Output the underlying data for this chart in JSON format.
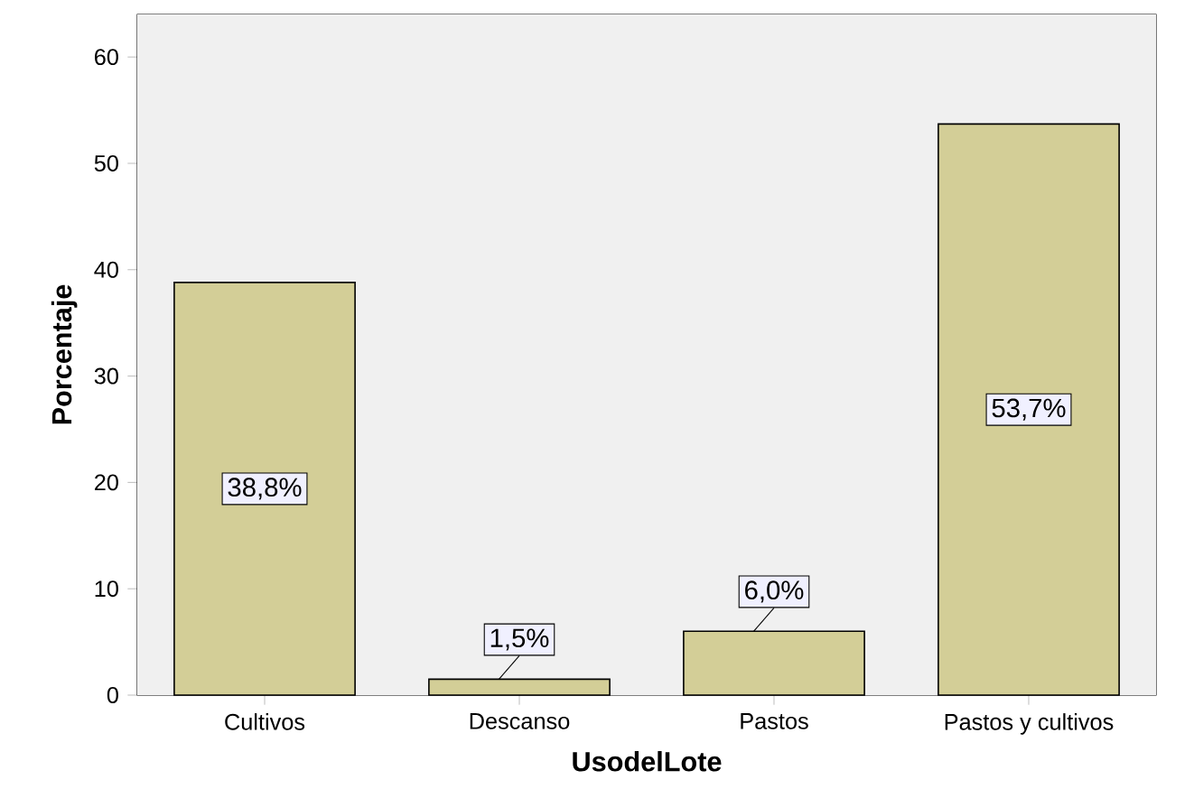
{
  "chart_data": {
    "type": "bar",
    "xlabel": "UsodelLote",
    "ylabel": "Porcentaje",
    "categories": [
      "Cultivos",
      "Descanso",
      "Pastos",
      "Pastos y cultivos"
    ],
    "values": [
      38.8,
      1.5,
      6.0,
      53.7
    ],
    "value_labels": [
      "38,8%",
      "1,5%",
      "6,0%",
      "53,7%"
    ],
    "color": "#d3ce97",
    "ylim": [
      0,
      64
    ],
    "yticks": [
      0,
      10,
      20,
      30,
      40,
      50,
      60
    ],
    "grid": false
  }
}
